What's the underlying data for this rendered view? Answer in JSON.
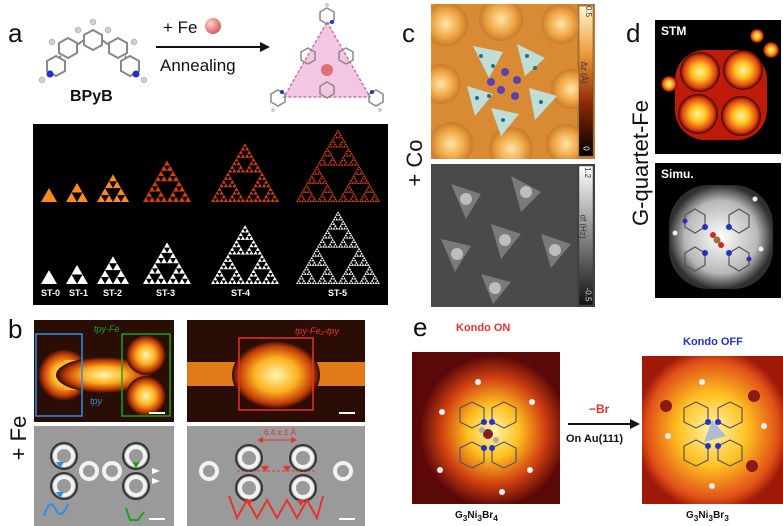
{
  "panels": {
    "a": {
      "label": "a",
      "molecule": "BPyB",
      "reagent": "+ Fe",
      "process": "Annealing",
      "fractals": [
        "ST-0",
        "ST-1",
        "ST-2",
        "ST-3",
        "ST-4",
        "ST-5"
      ]
    },
    "b": {
      "label": "b",
      "side": "+ Fe",
      "tag_tpyfe": "tpy-Fe",
      "tag_tpy": "tpy",
      "tag_tpyfe2tpy": "tpy-Fe₂-tpy",
      "dim": "6.4 ± 1 Å"
    },
    "c": {
      "label": "c",
      "side": "+ Co",
      "cbar_top": {
        "label": "Δz (Å)",
        "max": "0.5",
        "min": "0"
      },
      "cbar_bottom": {
        "label": "df (Hz)",
        "max": "1.2",
        "min": "-0.5"
      }
    },
    "d": {
      "label": "d",
      "side": "G-quartet-Fe",
      "stm": "STM",
      "simu": "Simu."
    },
    "e": {
      "label": "e",
      "kondo_on": "Kondo ON",
      "kondo_off": "Kondo OFF",
      "reaction": "−Br",
      "substrate": "On Au(111)",
      "formula_left": {
        "base": "G",
        "s1": "3",
        "el": "Ni",
        "s2": "3",
        "el2": "Br",
        "s3": "4"
      },
      "formula_right": {
        "base": "G",
        "s1": "3",
        "el": "Ni",
        "s2": "3",
        "el2": "Br",
        "s3": "3"
      }
    }
  },
  "colors": {
    "red": "#e8322b",
    "blue": "#2231c9",
    "green": "#1aa41a",
    "cyan": "#2a8fe8"
  }
}
